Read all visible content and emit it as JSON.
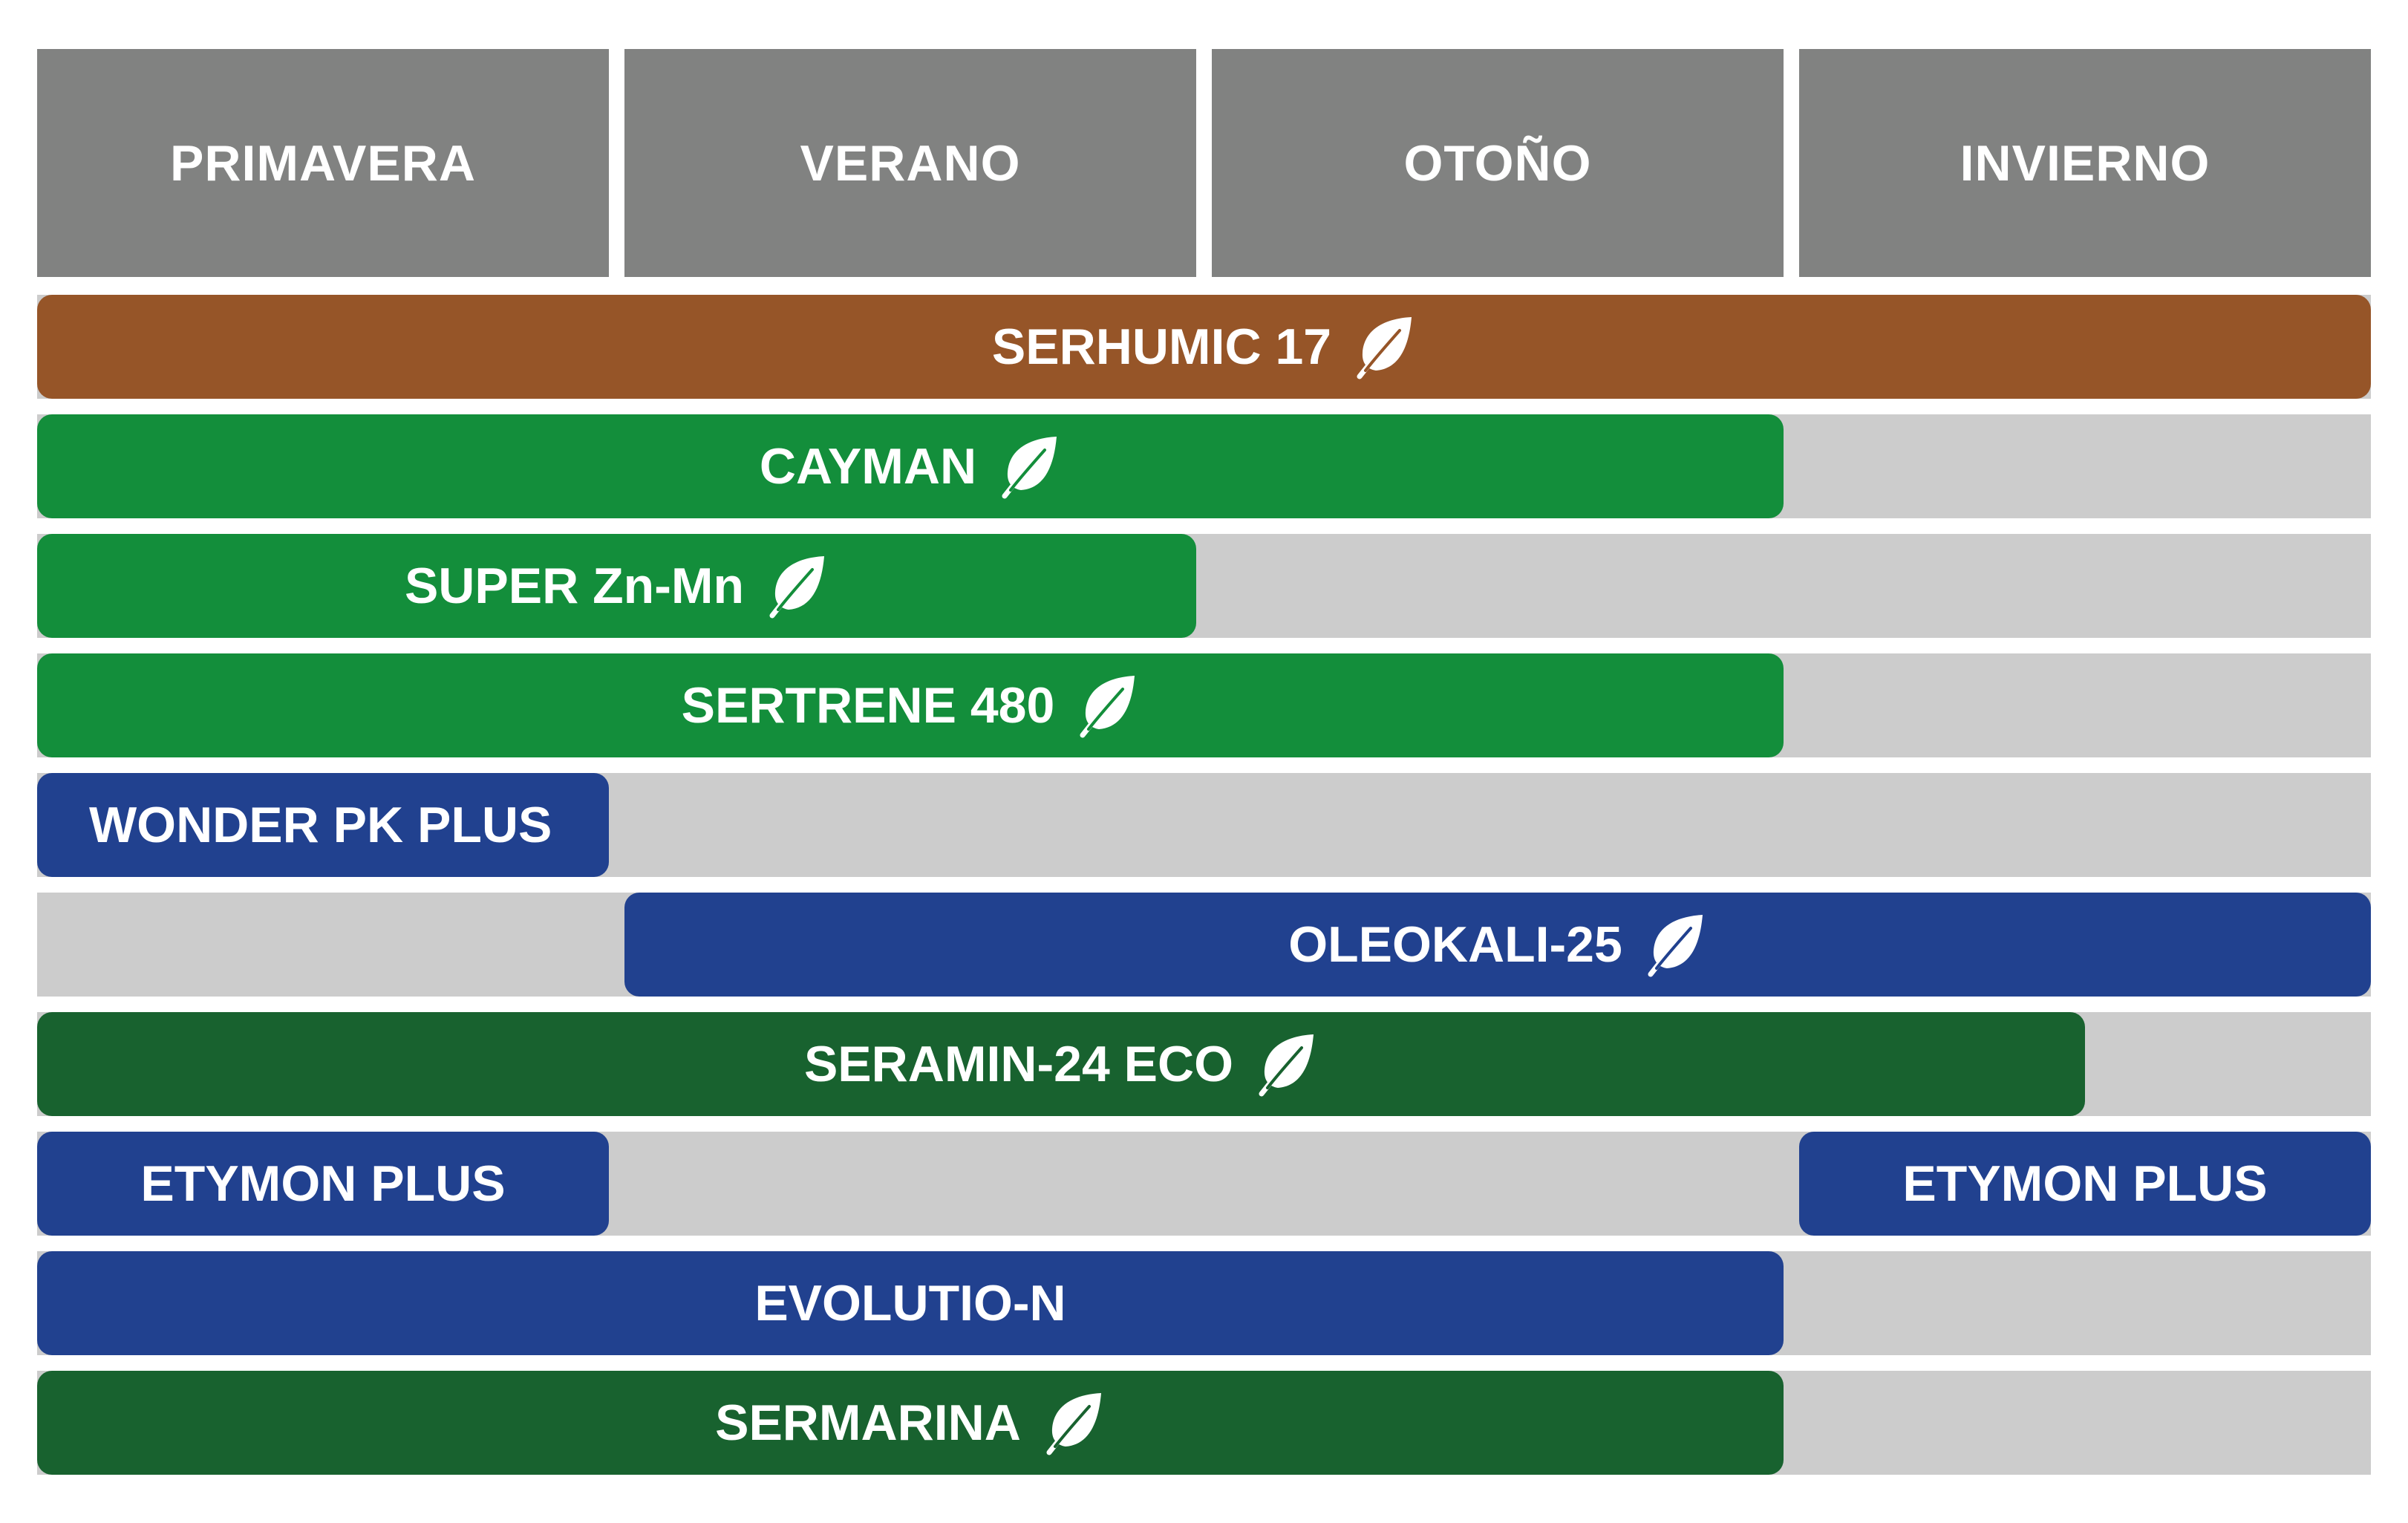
{
  "seasons": [
    "PRIMAVERA",
    "VERANO",
    "OTOÑO",
    "INVIERNO"
  ],
  "colors": {
    "header": "#818281",
    "track": "#cccccc",
    "brown": "#965528",
    "green": "#138e3b",
    "dark_green": "#18622f",
    "blue": "#21418f"
  },
  "products": [
    {
      "name": "SERHUMIC 17",
      "eco": true,
      "color": "brown",
      "segments": [
        {
          "start": 1,
          "end": 4
        }
      ]
    },
    {
      "name": "CAYMAN",
      "eco": true,
      "color": "green",
      "segments": [
        {
          "start": 1,
          "end": 3
        }
      ]
    },
    {
      "name": "SUPER Zn-Mn",
      "eco": true,
      "color": "green",
      "segments": [
        {
          "start": 1,
          "end": 2
        }
      ]
    },
    {
      "name": "SERTRENE 480",
      "eco": true,
      "color": "green",
      "segments": [
        {
          "start": 1,
          "end": 3
        }
      ]
    },
    {
      "name": "WONDER PK PLUS",
      "eco": false,
      "color": "blue",
      "segments": [
        {
          "start": 1,
          "end": 1
        }
      ]
    },
    {
      "name": "OLEOKALI-25",
      "eco": true,
      "color": "blue",
      "segments": [
        {
          "start": 2,
          "end": 4
        }
      ]
    },
    {
      "name": "SERAMIN-24 ECO",
      "eco": true,
      "color": "dark_green",
      "segments": [
        {
          "start": 1,
          "end": 3.5
        }
      ]
    },
    {
      "name": "ETYMON PLUS",
      "eco": false,
      "color": "blue",
      "segments": [
        {
          "start": 1,
          "end": 1
        },
        {
          "start": 4,
          "end": 4
        }
      ]
    },
    {
      "name": "EVOLUTIO-N",
      "eco": false,
      "color": "blue",
      "segments": [
        {
          "start": 1,
          "end": 3
        }
      ]
    },
    {
      "name": "SERMARINA",
      "eco": true,
      "color": "dark_green",
      "segments": [
        {
          "start": 1,
          "end": 3
        }
      ]
    }
  ]
}
